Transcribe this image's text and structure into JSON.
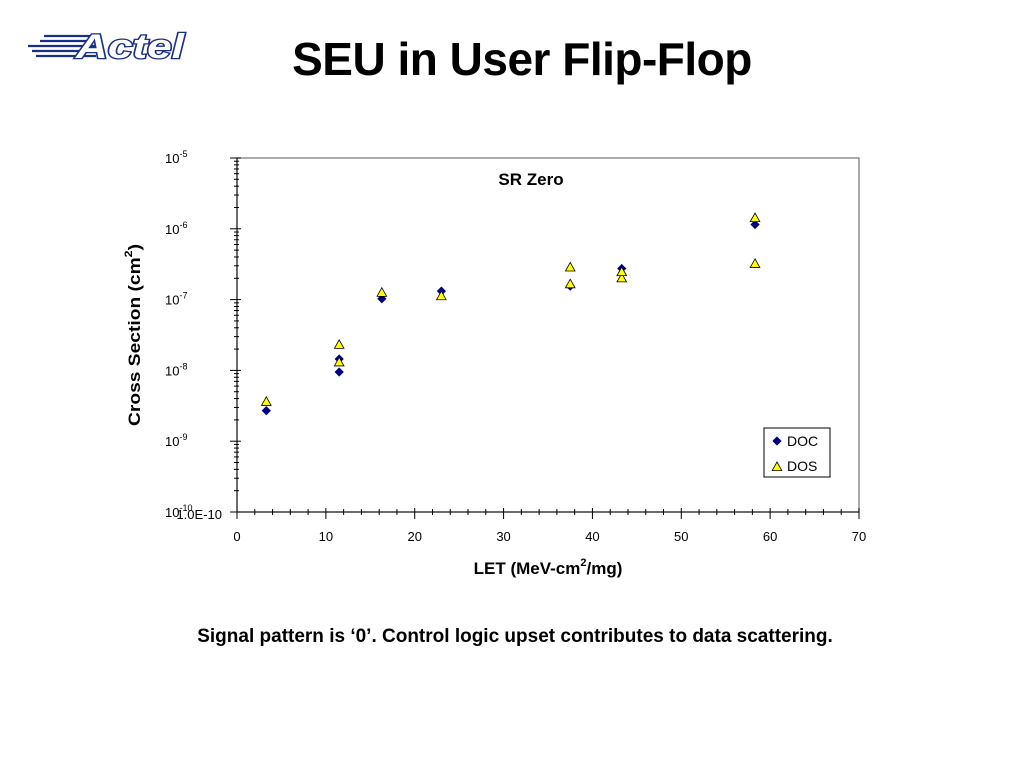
{
  "slide": {
    "logo_text": "Actel",
    "title": "SEU in User Flip-Flop",
    "caption": "Signal pattern is ‘0’. Control logic upset contributes to data scattering."
  },
  "chart_data": {
    "type": "scatter",
    "title": "SR Zero",
    "xlabel": "LET (MeV-cm²/mg)",
    "xlabel_main": "LET (MeV-cm",
    "xlabel_sup": "2",
    "xlabel_tail": "/mg)",
    "ylabel": "Cross Section (cm²)",
    "ylabel_main": "Cross Section (cm",
    "ylabel_sup": "2",
    "ylabel_tail": ")",
    "xlim": [
      0,
      70
    ],
    "ylim": [
      1e-10,
      1e-05
    ],
    "yscale": "log",
    "x_ticks": [
      0,
      10,
      20,
      30,
      40,
      50,
      60,
      70
    ],
    "y_ticks": [
      {
        "value": 1e-05,
        "base": "10",
        "exp": "-5"
      },
      {
        "value": 1e-06,
        "base": "10",
        "exp": "-6"
      },
      {
        "value": 1e-07,
        "base": "10",
        "exp": "-7"
      },
      {
        "value": 1e-08,
        "base": "10",
        "exp": "-8"
      },
      {
        "value": 1e-09,
        "base": "10",
        "exp": "-9"
      },
      {
        "value": 1e-10,
        "base": "10",
        "exp": "-10"
      }
    ],
    "y_bottom_extra_label": "1.0E-10",
    "grid": false,
    "legend_position": "bottom-right",
    "series": [
      {
        "name": "DOC",
        "marker": "diamond",
        "color": "#000080",
        "x": [
          3.3,
          11.5,
          11.5,
          16.3,
          23.0,
          37.5,
          43.3,
          58.3
        ],
        "y": [
          2.7e-09,
          9.5e-09,
          1.45e-08,
          1.03e-07,
          1.32e-07,
          1.55e-07,
          2.75e-07,
          1.15e-06
        ]
      },
      {
        "name": "DOS",
        "marker": "triangle",
        "color": "#FFFF00",
        "x": [
          3.3,
          11.5,
          11.5,
          16.3,
          23.0,
          37.5,
          37.5,
          43.3,
          43.3,
          58.3,
          58.3
        ],
        "y": [
          3.6e-09,
          1.3e-08,
          2.3e-08,
          1.25e-07,
          1.12e-07,
          1.65e-07,
          2.85e-07,
          2e-07,
          2.45e-07,
          1.42e-06,
          3.2e-07
        ]
      }
    ]
  }
}
